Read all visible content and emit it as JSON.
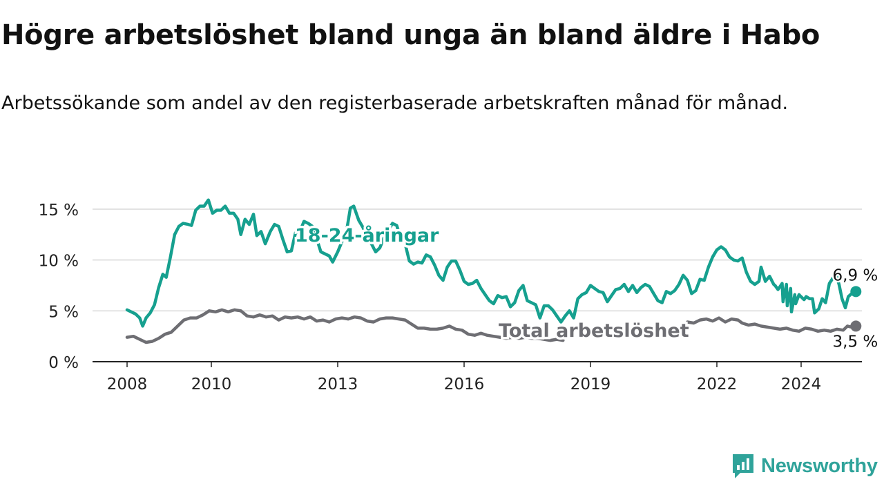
{
  "title": "Högre arbetslöshet bland unga än bland äldre i Habo",
  "subtitle": "Arbetssökande som andel av den registerbaserade arbetskraften månad för månad.",
  "brand": {
    "name": "Newsworthy",
    "icon": "newsworthy-logo-icon",
    "color": "#2fa39a"
  },
  "chart_data": {
    "type": "line",
    "x_unit": "year (monthly data)",
    "xlim": [
      2007.3,
      2024.95
    ],
    "ylim": [
      0,
      16
    ],
    "x_ticks": [
      2008,
      2010,
      2013,
      2016,
      2019,
      2022,
      2024
    ],
    "x_tick_labels": [
      "2008",
      "2010",
      "2013",
      "2016",
      "2019",
      "2022",
      "2024"
    ],
    "y_ticks": [
      0,
      5,
      10,
      15
    ],
    "y_tick_labels": [
      "0 %",
      "5 %",
      "10 %",
      "15 %"
    ],
    "grid": true,
    "series": [
      {
        "name": "18-24-åringar",
        "color": "#16a08f",
        "label_at": [
          2012.8,
          12.6
        ],
        "end_label": "6,9 %",
        "points": [
          [
            2008.0,
            5.1
          ],
          [
            2008.2,
            4.7
          ],
          [
            2008.3,
            4.3
          ],
          [
            2008.37,
            3.5
          ],
          [
            2008.45,
            4.3
          ],
          [
            2008.55,
            4.8
          ],
          [
            2008.65,
            5.6
          ],
          [
            2008.75,
            7.3
          ],
          [
            2008.85,
            8.6
          ],
          [
            2008.93,
            8.3
          ],
          [
            2009.03,
            10.3
          ],
          [
            2009.13,
            12.5
          ],
          [
            2009.23,
            13.3
          ],
          [
            2009.33,
            13.6
          ],
          [
            2009.45,
            13.5
          ],
          [
            2009.53,
            13.4
          ],
          [
            2009.63,
            14.9
          ],
          [
            2009.73,
            15.3
          ],
          [
            2009.83,
            15.3
          ],
          [
            2009.93,
            15.9
          ],
          [
            2010.03,
            14.6
          ],
          [
            2010.13,
            14.9
          ],
          [
            2010.23,
            14.9
          ],
          [
            2010.33,
            15.3
          ],
          [
            2010.43,
            14.6
          ],
          [
            2010.53,
            14.6
          ],
          [
            2010.63,
            14.0
          ],
          [
            2010.7,
            12.5
          ],
          [
            2010.8,
            14.0
          ],
          [
            2010.9,
            13.5
          ],
          [
            2011.0,
            14.5
          ],
          [
            2011.08,
            12.4
          ],
          [
            2011.18,
            12.8
          ],
          [
            2011.28,
            11.6
          ],
          [
            2011.4,
            12.8
          ],
          [
            2011.5,
            13.5
          ],
          [
            2011.6,
            13.3
          ],
          [
            2011.7,
            12.0
          ],
          [
            2011.8,
            10.8
          ],
          [
            2011.9,
            10.9
          ],
          [
            2012.0,
            12.7
          ],
          [
            2012.1,
            12.8
          ],
          [
            2012.2,
            13.8
          ],
          [
            2012.3,
            13.6
          ],
          [
            2012.4,
            13.3
          ],
          [
            2012.5,
            12.1
          ],
          [
            2012.6,
            10.8
          ],
          [
            2012.7,
            10.6
          ],
          [
            2012.8,
            10.4
          ],
          [
            2012.88,
            9.8
          ],
          [
            2013.0,
            10.8
          ],
          [
            2013.1,
            11.8
          ],
          [
            2013.2,
            12.6
          ],
          [
            2013.3,
            15.1
          ],
          [
            2013.38,
            15.3
          ],
          [
            2013.5,
            13.9
          ],
          [
            2013.6,
            13.2
          ],
          [
            2013.7,
            12.0
          ],
          [
            2013.8,
            11.6
          ],
          [
            2013.9,
            10.8
          ],
          [
            2014.0,
            11.2
          ],
          [
            2014.1,
            12.2
          ],
          [
            2014.2,
            12.9
          ],
          [
            2014.3,
            13.6
          ],
          [
            2014.4,
            13.4
          ],
          [
            2014.5,
            12.1
          ],
          [
            2014.6,
            11.6
          ],
          [
            2014.7,
            9.9
          ],
          [
            2014.8,
            9.6
          ],
          [
            2014.9,
            9.8
          ],
          [
            2015.0,
            9.7
          ],
          [
            2015.1,
            10.5
          ],
          [
            2015.2,
            10.3
          ],
          [
            2015.3,
            9.5
          ],
          [
            2015.4,
            8.5
          ],
          [
            2015.5,
            8.0
          ],
          [
            2015.6,
            9.3
          ],
          [
            2015.7,
            9.9
          ],
          [
            2015.8,
            9.9
          ],
          [
            2015.9,
            9.0
          ],
          [
            2016.0,
            7.9
          ],
          [
            2016.1,
            7.6
          ],
          [
            2016.2,
            7.7
          ],
          [
            2016.3,
            8.0
          ],
          [
            2016.4,
            7.2
          ],
          [
            2016.5,
            6.6
          ],
          [
            2016.6,
            6.0
          ],
          [
            2016.7,
            5.7
          ],
          [
            2016.8,
            6.5
          ],
          [
            2016.9,
            6.3
          ],
          [
            2017.0,
            6.4
          ],
          [
            2017.1,
            5.4
          ],
          [
            2017.2,
            5.8
          ],
          [
            2017.3,
            7.0
          ],
          [
            2017.4,
            7.5
          ],
          [
            2017.5,
            6.0
          ],
          [
            2017.6,
            5.8
          ],
          [
            2017.7,
            5.6
          ],
          [
            2017.8,
            4.3
          ],
          [
            2017.9,
            5.5
          ],
          [
            2018.0,
            5.5
          ],
          [
            2018.1,
            5.1
          ],
          [
            2018.2,
            4.5
          ],
          [
            2018.3,
            3.9
          ],
          [
            2018.4,
            4.5
          ],
          [
            2018.5,
            5.0
          ],
          [
            2018.6,
            4.3
          ],
          [
            2018.7,
            6.2
          ],
          [
            2018.8,
            6.6
          ],
          [
            2018.9,
            6.8
          ],
          [
            2019.0,
            7.5
          ],
          [
            2019.1,
            7.2
          ],
          [
            2019.2,
            6.9
          ],
          [
            2019.3,
            6.8
          ],
          [
            2019.4,
            5.9
          ],
          [
            2019.5,
            6.5
          ],
          [
            2019.6,
            7.1
          ],
          [
            2019.7,
            7.2
          ],
          [
            2019.8,
            7.6
          ],
          [
            2019.9,
            6.9
          ],
          [
            2020.0,
            7.5
          ],
          [
            2020.1,
            6.8
          ],
          [
            2020.2,
            7.3
          ],
          [
            2020.3,
            7.6
          ],
          [
            2020.4,
            7.4
          ],
          [
            2020.5,
            6.7
          ],
          [
            2020.6,
            6.0
          ],
          [
            2020.7,
            5.8
          ],
          [
            2020.8,
            6.9
          ],
          [
            2020.9,
            6.7
          ],
          [
            2021.0,
            7.0
          ],
          [
            2021.1,
            7.6
          ],
          [
            2021.2,
            8.5
          ],
          [
            2021.3,
            8.0
          ],
          [
            2021.4,
            6.7
          ],
          [
            2021.5,
            7.0
          ],
          [
            2021.6,
            8.1
          ],
          [
            2021.7,
            8.0
          ],
          [
            2021.8,
            9.3
          ],
          [
            2021.9,
            10.3
          ],
          [
            2022.0,
            11.0
          ],
          [
            2022.1,
            11.3
          ],
          [
            2022.2,
            11.0
          ],
          [
            2022.3,
            10.3
          ],
          [
            2022.4,
            10.0
          ],
          [
            2022.5,
            9.9
          ],
          [
            2022.6,
            10.2
          ],
          [
            2022.7,
            8.8
          ],
          [
            2022.8,
            7.9
          ],
          [
            2022.9,
            7.6
          ],
          [
            2023.0,
            7.9
          ],
          [
            2023.05,
            9.3
          ],
          [
            2023.15,
            7.9
          ],
          [
            2023.25,
            8.4
          ],
          [
            2023.35,
            7.6
          ],
          [
            2023.45,
            7.1
          ],
          [
            2023.55,
            7.7
          ],
          [
            2023.65,
            7.6
          ],
          [
            2023.75,
            7.2
          ],
          [
            2023.85,
            6.6
          ],
          [
            2023.95,
            6.6
          ],
          [
            2023.38,
            7.5
          ],
          [
            2023.47,
            7.2
          ],
          [
            2023.57,
            5.9
          ],
          [
            2023.67,
            5.5
          ],
          [
            2023.77,
            4.9
          ],
          [
            2023.87,
            5.7
          ],
          [
            2023.97,
            6.5
          ],
          [
            2024.07,
            6.1
          ],
          [
            2024.12,
            6.4
          ],
          [
            2024.2,
            6.2
          ],
          [
            2024.27,
            6.2
          ],
          [
            2024.32,
            4.8
          ],
          [
            2024.42,
            5.2
          ],
          [
            2024.5,
            6.2
          ],
          [
            2024.58,
            5.8
          ],
          [
            2024.67,
            7.7
          ],
          [
            2024.75,
            8.2
          ],
          [
            2024.83,
            8.6
          ],
          [
            2024.9,
            7.6
          ],
          [
            2024.97,
            6.2
          ],
          [
            2025.05,
            5.3
          ],
          [
            2025.12,
            6.4
          ],
          [
            2025.2,
            6.7
          ],
          [
            2025.3,
            6.9
          ]
        ]
      },
      {
        "name": "Total arbetslöshet",
        "color": "#6e6e73",
        "label_at": [
          2018.6,
          3.2
        ],
        "end_label": "3,5 %",
        "points": [
          [
            2008.0,
            2.4
          ],
          [
            2008.15,
            2.5
          ],
          [
            2008.3,
            2.2
          ],
          [
            2008.45,
            1.9
          ],
          [
            2008.6,
            2.0
          ],
          [
            2008.75,
            2.3
          ],
          [
            2008.9,
            2.7
          ],
          [
            2009.05,
            2.9
          ],
          [
            2009.2,
            3.5
          ],
          [
            2009.35,
            4.1
          ],
          [
            2009.5,
            4.3
          ],
          [
            2009.65,
            4.3
          ],
          [
            2009.8,
            4.6
          ],
          [
            2009.95,
            5.0
          ],
          [
            2010.1,
            4.9
          ],
          [
            2010.25,
            5.1
          ],
          [
            2010.4,
            4.9
          ],
          [
            2010.55,
            5.1
          ],
          [
            2010.7,
            5.0
          ],
          [
            2010.85,
            4.5
          ],
          [
            2011.0,
            4.4
          ],
          [
            2011.15,
            4.6
          ],
          [
            2011.3,
            4.4
          ],
          [
            2011.45,
            4.5
          ],
          [
            2011.6,
            4.1
          ],
          [
            2011.75,
            4.4
          ],
          [
            2011.9,
            4.3
          ],
          [
            2012.05,
            4.4
          ],
          [
            2012.2,
            4.2
          ],
          [
            2012.35,
            4.4
          ],
          [
            2012.5,
            4.0
          ],
          [
            2012.65,
            4.1
          ],
          [
            2012.8,
            3.9
          ],
          [
            2012.95,
            4.2
          ],
          [
            2013.1,
            4.3
          ],
          [
            2013.25,
            4.2
          ],
          [
            2013.4,
            4.4
          ],
          [
            2013.55,
            4.3
          ],
          [
            2013.7,
            4.0
          ],
          [
            2013.85,
            3.9
          ],
          [
            2014.0,
            4.2
          ],
          [
            2014.15,
            4.3
          ],
          [
            2014.3,
            4.3
          ],
          [
            2014.45,
            4.2
          ],
          [
            2014.6,
            4.1
          ],
          [
            2014.75,
            3.7
          ],
          [
            2014.9,
            3.3
          ],
          [
            2015.05,
            3.3
          ],
          [
            2015.2,
            3.2
          ],
          [
            2015.35,
            3.2
          ],
          [
            2015.5,
            3.3
          ],
          [
            2015.65,
            3.5
          ],
          [
            2015.8,
            3.2
          ],
          [
            2015.95,
            3.1
          ],
          [
            2016.1,
            2.7
          ],
          [
            2016.25,
            2.6
          ],
          [
            2016.4,
            2.8
          ],
          [
            2016.55,
            2.6
          ],
          [
            2016.7,
            2.5
          ],
          [
            2016.85,
            2.4
          ],
          [
            2017.0,
            2.3
          ],
          [
            2017.15,
            2.4
          ],
          [
            2017.3,
            2.3
          ],
          [
            2017.45,
            2.4
          ],
          [
            2017.6,
            2.3
          ],
          [
            2017.75,
            2.3
          ],
          [
            2017.9,
            2.2
          ],
          [
            2018.05,
            2.1
          ],
          [
            2018.2,
            2.2
          ],
          [
            2018.35,
            2.1
          ],
          [
            2021.3,
            3.9
          ],
          [
            2021.45,
            3.8
          ],
          [
            2021.6,
            4.1
          ],
          [
            2021.75,
            4.2
          ],
          [
            2021.9,
            4.0
          ],
          [
            2022.05,
            4.3
          ],
          [
            2022.2,
            3.9
          ],
          [
            2022.35,
            4.2
          ],
          [
            2022.5,
            4.1
          ],
          [
            2022.6,
            3.8
          ],
          [
            2022.75,
            3.6
          ],
          [
            2022.9,
            3.7
          ],
          [
            2023.05,
            3.5
          ],
          [
            2023.2,
            3.4
          ],
          [
            2023.35,
            3.3
          ],
          [
            2023.5,
            3.2
          ],
          [
            2023.65,
            3.3
          ],
          [
            2023.8,
            3.1
          ],
          [
            2023.95,
            3.0
          ],
          [
            2024.1,
            3.3
          ],
          [
            2024.25,
            3.2
          ],
          [
            2024.4,
            3.0
          ],
          [
            2024.55,
            3.1
          ],
          [
            2024.7,
            3.0
          ],
          [
            2024.85,
            3.2
          ],
          [
            2025.0,
            3.1
          ],
          [
            2025.1,
            3.5
          ],
          [
            2025.2,
            3.4
          ],
          [
            2025.3,
            3.5
          ]
        ]
      }
    ]
  }
}
